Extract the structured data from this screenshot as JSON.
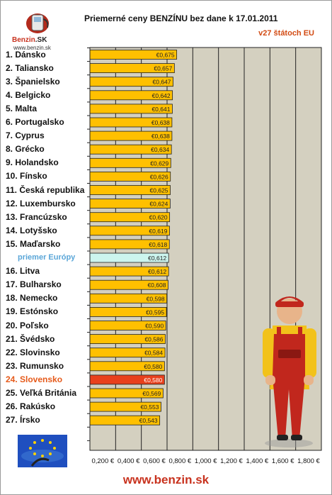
{
  "logo": {
    "brand": "Benzin",
    "brand_suffix": ".SK",
    "url": "www.benzin.sk"
  },
  "footer": {
    "url": "www.benzin.sk"
  },
  "chart_data": {
    "type": "bar",
    "orientation": "horizontal",
    "title": "Priemerné ceny BENZÍNU bez dane k 17.01.2011",
    "subtitle": "v27 štátoch EU",
    "categories": [
      "1. Dánsko",
      "2. Taliansko",
      "3. Španielsko",
      "4. Belgicko",
      "5. Malta",
      "6. Portugalsko",
      "7. Cyprus",
      "8. Grécko",
      "9. Holandsko",
      "10. Fínsko",
      "11. Česká republika",
      "12. Luxembursko",
      "13. Francúzsko",
      "14. Lotyšsko",
      "15. Maďarsko",
      "priemer Európy",
      "16. Litva",
      "17. Bulharsko",
      "18. Nemecko",
      "19. Estónsko",
      "20. Poľsko",
      "21. Švédsko",
      "22. Slovinsko",
      "23. Rumunsko",
      "24. Slovensko",
      "25. Veľká Británia",
      "26. Rakúsko",
      "27. Írsko"
    ],
    "values": [
      0.675,
      0.657,
      0.647,
      0.642,
      0.641,
      0.638,
      0.638,
      0.634,
      0.629,
      0.626,
      0.625,
      0.624,
      0.62,
      0.619,
      0.618,
      0.612,
      0.612,
      0.608,
      0.598,
      0.595,
      0.59,
      0.586,
      0.584,
      0.58,
      0.58,
      0.569,
      0.553,
      0.543
    ],
    "value_labels": [
      "€0,675",
      "€0,657",
      "€0,647",
      "€0,642",
      "€0,641",
      "€0,638",
      "€0,638",
      "€0,634",
      "€0,629",
      "€0,626",
      "€0,625",
      "€0,624",
      "€0,620",
      "€0,619",
      "€0,618",
      "€0,612",
      "€0,612",
      "€0,608",
      "€0,598",
      "€0,595",
      "€0,590",
      "€0,586",
      "€0,584",
      "€0,580",
      "€0,580",
      "€0,569",
      "€0,553",
      "€0,543"
    ],
    "xlim": [
      0,
      1.8
    ],
    "xticks": [
      "0,200 €",
      "0,400 €",
      "0,600 €",
      "0,800 €",
      "1,000 €",
      "1,200 €",
      "1,400 €",
      "1,600 €",
      "1,800 €"
    ],
    "grid": "vertical",
    "colors": {
      "bar": "#ffc000",
      "average": "#ccf5ee",
      "highlight": "#e8401c",
      "plot_bg": "#d4d0c0"
    },
    "average_index": 15,
    "highlight_index": 24
  }
}
